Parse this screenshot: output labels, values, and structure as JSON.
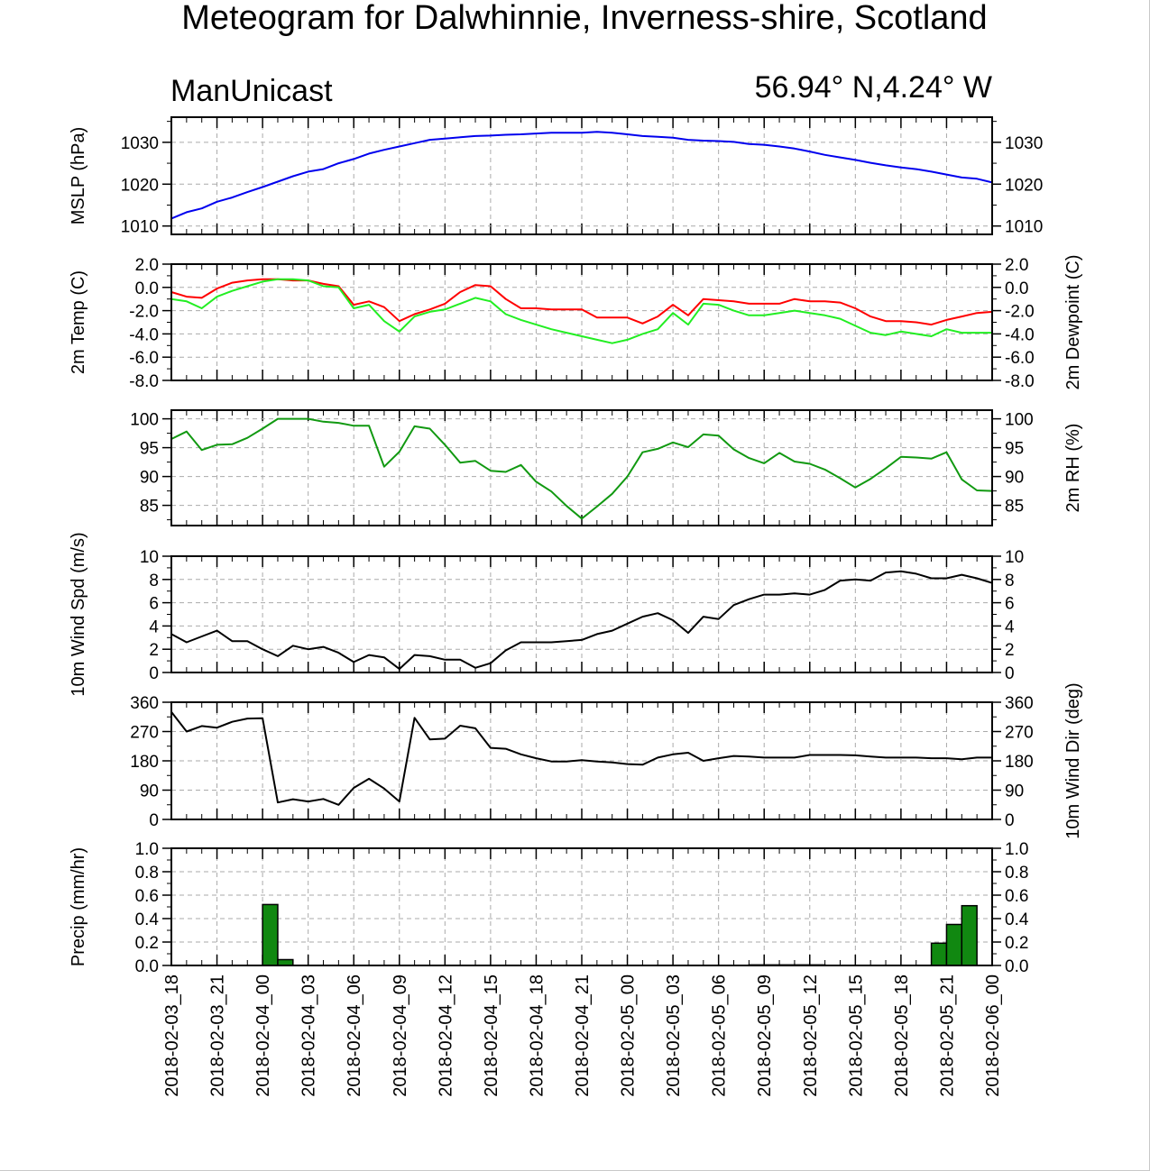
{
  "title": "Meteogram for Dalwhinnie, Inverness-shire, Scotland",
  "model": "ManUnicast",
  "location": "56.94° N,4.24° W",
  "chart_data": {
    "type": "line",
    "x_ticks": [
      "2018-02-03_18",
      "2018-02-03_21",
      "2018-02-04_00",
      "2018-02-04_03",
      "2018-02-04_06",
      "2018-02-04_09",
      "2018-02-04_12",
      "2018-02-04_15",
      "2018-02-04_18",
      "2018-02-04_21",
      "2018-02-05_00",
      "2018-02-05_03",
      "2018-02-05_06",
      "2018-02-05_09",
      "2018-02-05_12",
      "2018-02-05_15",
      "2018-02-05_18",
      "2018-02-05_21",
      "2018-02-06_00"
    ],
    "x_hours": [
      0,
      1,
      2,
      3,
      4,
      5,
      6,
      7,
      8,
      9,
      10,
      11,
      12,
      13,
      14,
      15,
      16,
      17,
      18,
      19,
      20,
      21,
      22,
      23,
      24,
      25,
      26,
      27,
      28,
      29,
      30,
      31,
      32,
      33,
      34,
      35,
      36,
      37,
      38,
      39,
      40,
      41,
      42,
      43,
      44,
      45,
      46,
      47,
      48,
      49,
      50,
      51,
      52,
      53,
      54
    ],
    "panels": [
      {
        "id": "mslp",
        "type": "line",
        "ylabel_left": "MSLP (hPa)",
        "ylabel_right": "",
        "ylim": [
          1008,
          1036
        ],
        "yticks": [
          1010,
          1020,
          1030
        ],
        "ytick_labels": [
          "1010",
          "1020",
          "1030"
        ],
        "series": [
          {
            "color": "#0000ee",
            "values": [
              1011.8,
              1013.3,
              1014.2,
              1015.8,
              1016.8,
              1018.1,
              1019.3,
              1020.6,
              1021.9,
              1023.0,
              1023.6,
              1025.0,
              1026.0,
              1027.3,
              1028.2,
              1029.0,
              1029.8,
              1030.6,
              1030.9,
              1031.2,
              1031.5,
              1031.6,
              1031.8,
              1031.9,
              1032.1,
              1032.3,
              1032.3,
              1032.3,
              1032.5,
              1032.3,
              1031.9,
              1031.5,
              1031.3,
              1031.1,
              1030.6,
              1030.4,
              1030.3,
              1030.1,
              1029.6,
              1029.4,
              1029.0,
              1028.5,
              1027.8,
              1027.0,
              1026.4,
              1025.8,
              1025.1,
              1024.5,
              1024.0,
              1023.6,
              1023.0,
              1022.3,
              1021.6,
              1021.3,
              1020.4
            ]
          }
        ]
      },
      {
        "id": "temp",
        "type": "line",
        "ylabel_left": "2m Temp (C)",
        "ylabel_right": "2m Dewpoint (C)",
        "ylim": [
          -8,
          2
        ],
        "yticks": [
          -8,
          -6,
          -4,
          -2,
          0,
          2
        ],
        "ytick_labels": [
          "-8.0",
          "-6.0",
          "-4.0",
          "-2.0",
          "0.0",
          "2.0"
        ],
        "series": [
          {
            "color": "#ff0000",
            "values": [
              -0.4,
              -0.8,
              -0.9,
              -0.1,
              0.4,
              0.6,
              0.7,
              0.7,
              0.6,
              0.6,
              0.3,
              0.1,
              -1.5,
              -1.2,
              -1.7,
              -2.9,
              -2.3,
              -1.9,
              -1.4,
              -0.4,
              0.2,
              0.1,
              -1.0,
              -1.8,
              -1.8,
              -1.9,
              -1.9,
              -1.9,
              -2.6,
              -2.6,
              -2.6,
              -3.1,
              -2.5,
              -1.5,
              -2.4,
              -1.0,
              -1.1,
              -1.2,
              -1.4,
              -1.4,
              -1.4,
              -1.0,
              -1.2,
              -1.2,
              -1.3,
              -1.8,
              -2.5,
              -2.9,
              -2.9,
              -3.0,
              -3.2,
              -2.8,
              -2.5,
              -2.2,
              -2.1
            ]
          },
          {
            "color": "#22ee22",
            "values": [
              -1.0,
              -1.2,
              -1.8,
              -0.8,
              -0.3,
              0.1,
              0.5,
              0.7,
              0.7,
              0.6,
              0.1,
              0.0,
              -1.8,
              -1.5,
              -2.9,
              -3.8,
              -2.5,
              -2.1,
              -1.9,
              -1.4,
              -0.9,
              -1.2,
              -2.3,
              -2.8,
              -3.2,
              -3.6,
              -3.9,
              -4.2,
              -4.5,
              -4.8,
              -4.5,
              -4.0,
              -3.6,
              -2.2,
              -3.2,
              -1.4,
              -1.5,
              -2.0,
              -2.4,
              -2.4,
              -2.2,
              -2.0,
              -2.2,
              -2.4,
              -2.7,
              -3.3,
              -3.9,
              -4.1,
              -3.8,
              -4.0,
              -4.2,
              -3.6,
              -3.9,
              -3.9,
              -3.9
            ]
          }
        ]
      },
      {
        "id": "rh",
        "type": "line",
        "ylabel_left": "",
        "ylabel_right": "2m RH (%)",
        "ylim": [
          81.5,
          101.5
        ],
        "yticks": [
          85,
          90,
          95,
          100
        ],
        "ytick_labels": [
          "85",
          "90",
          "95",
          "100"
        ],
        "series": [
          {
            "color": "#119911",
            "values": [
              96.5,
              97.8,
              94.6,
              95.5,
              95.6,
              96.7,
              98.3,
              100.0,
              100.0,
              100.0,
              99.5,
              99.3,
              98.8,
              98.8,
              91.7,
              94.3,
              98.7,
              98.3,
              95.5,
              92.4,
              92.7,
              91.0,
              90.8,
              92.0,
              89.1,
              87.4,
              84.9,
              82.7,
              84.8,
              87.0,
              90.0,
              94.2,
              94.8,
              95.9,
              95.1,
              97.3,
              97.1,
              94.7,
              93.2,
              92.3,
              94.1,
              92.6,
              92.2,
              91.2,
              89.7,
              88.1,
              89.6,
              91.4,
              93.4,
              93.3,
              93.1,
              94.2,
              89.5,
              87.6,
              87.5
            ]
          }
        ]
      },
      {
        "id": "wspd",
        "type": "line",
        "ylabel_left": "10m Wind Spd (m/s)",
        "ylabel_right": "",
        "ylim": [
          0,
          10
        ],
        "yticks": [
          0,
          2,
          4,
          6,
          8,
          10
        ],
        "ytick_labels": [
          "0",
          "2",
          "4",
          "6",
          "8",
          "10"
        ],
        "series": [
          {
            "color": "#000000",
            "values": [
              3.3,
              2.6,
              3.1,
              3.6,
              2.7,
              2.7,
              2.0,
              1.4,
              2.3,
              2.0,
              2.2,
              1.7,
              0.9,
              1.5,
              1.3,
              0.3,
              1.5,
              1.4,
              1.1,
              1.1,
              0.4,
              0.8,
              1.9,
              2.6,
              2.6,
              2.6,
              2.7,
              2.8,
              3.3,
              3.6,
              4.2,
              4.8,
              5.1,
              4.5,
              3.4,
              4.8,
              4.6,
              5.8,
              6.3,
              6.7,
              6.7,
              6.8,
              6.7,
              7.1,
              7.9,
              8.0,
              7.9,
              8.6,
              8.7,
              8.5,
              8.1,
              8.1,
              8.4,
              8.1,
              7.7
            ]
          }
        ]
      },
      {
        "id": "wdir",
        "type": "line",
        "ylabel_left": "",
        "ylabel_right": "10m Wind Dir (deg)",
        "ylim": [
          0,
          360
        ],
        "yticks": [
          0,
          90,
          180,
          270,
          360
        ],
        "ytick_labels": [
          "0",
          "90",
          "180",
          "270",
          "360"
        ],
        "series": [
          {
            "color": "#000000",
            "values": [
              330,
              270,
              287,
              282,
              300,
              310,
              311,
              52,
              62,
              55,
              63,
              45,
              97,
              125,
              95,
              55,
              312,
              246,
              248,
              288,
              280,
              220,
              217,
              200,
              188,
              178,
              178,
              182,
              178,
              175,
              170,
              168,
              190,
              200,
              205,
              180,
              188,
              195,
              193,
              190,
              190,
              190,
              198,
              198,
              198,
              197,
              193,
              190,
              190,
              190,
              188,
              188,
              185,
              190,
              190
            ]
          }
        ]
      },
      {
        "id": "precip",
        "type": "bar",
        "ylabel_left": "Precip (mm/hr)",
        "ylabel_right": "",
        "ylim": [
          0,
          1
        ],
        "yticks": [
          0,
          0.2,
          0.4,
          0.6,
          0.8,
          1.0
        ],
        "ytick_labels": [
          "0.0",
          "0.2",
          "0.4",
          "0.6",
          "0.8",
          "1.0"
        ],
        "bar_color": "#118811",
        "bars": [
          {
            "hour": 6.5,
            "value": 0.52
          },
          {
            "hour": 7.5,
            "value": 0.05
          },
          {
            "hour": 38.5,
            "value": 0.005
          },
          {
            "hour": 39.5,
            "value": 0.005
          },
          {
            "hour": 40.5,
            "value": 0.005
          },
          {
            "hour": 41.5,
            "value": 0.005
          },
          {
            "hour": 42.5,
            "value": 0.005
          },
          {
            "hour": 50.5,
            "value": 0.19
          },
          {
            "hour": 51.5,
            "value": 0.35
          },
          {
            "hour": 52.5,
            "value": 0.51
          }
        ]
      }
    ]
  }
}
